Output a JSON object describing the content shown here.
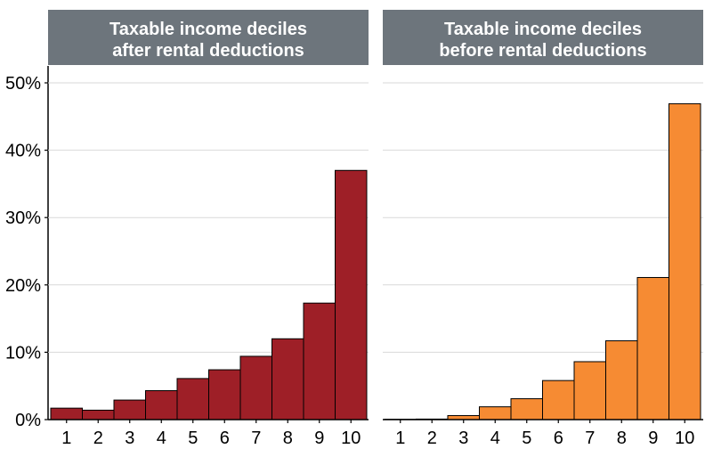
{
  "chart_data": {
    "type": "bar",
    "categories": [
      "1",
      "2",
      "3",
      "4",
      "5",
      "6",
      "7",
      "8",
      "9",
      "10"
    ],
    "ylim": [
      0,
      0.5
    ],
    "yticks": [
      "0%",
      "10%",
      "20%",
      "30%",
      "40%",
      "50%"
    ],
    "grid": true,
    "panels": [
      {
        "title_lines": [
          "Taxable income deciles",
          "after rental deductions"
        ],
        "color": "#9e1f27",
        "values": [
          0.017,
          0.014,
          0.029,
          0.043,
          0.061,
          0.074,
          0.094,
          0.12,
          0.173,
          0.37
        ]
      },
      {
        "title_lines": [
          "Taxable income deciles",
          "before rental deductions"
        ],
        "color": "#f68b33",
        "values": [
          0.0005,
          0.0008,
          0.006,
          0.019,
          0.031,
          0.058,
          0.086,
          0.117,
          0.211,
          0.469
        ]
      }
    ]
  },
  "colors": {
    "strip_background": "#6d757c",
    "gridline": "#d9d9d9"
  }
}
